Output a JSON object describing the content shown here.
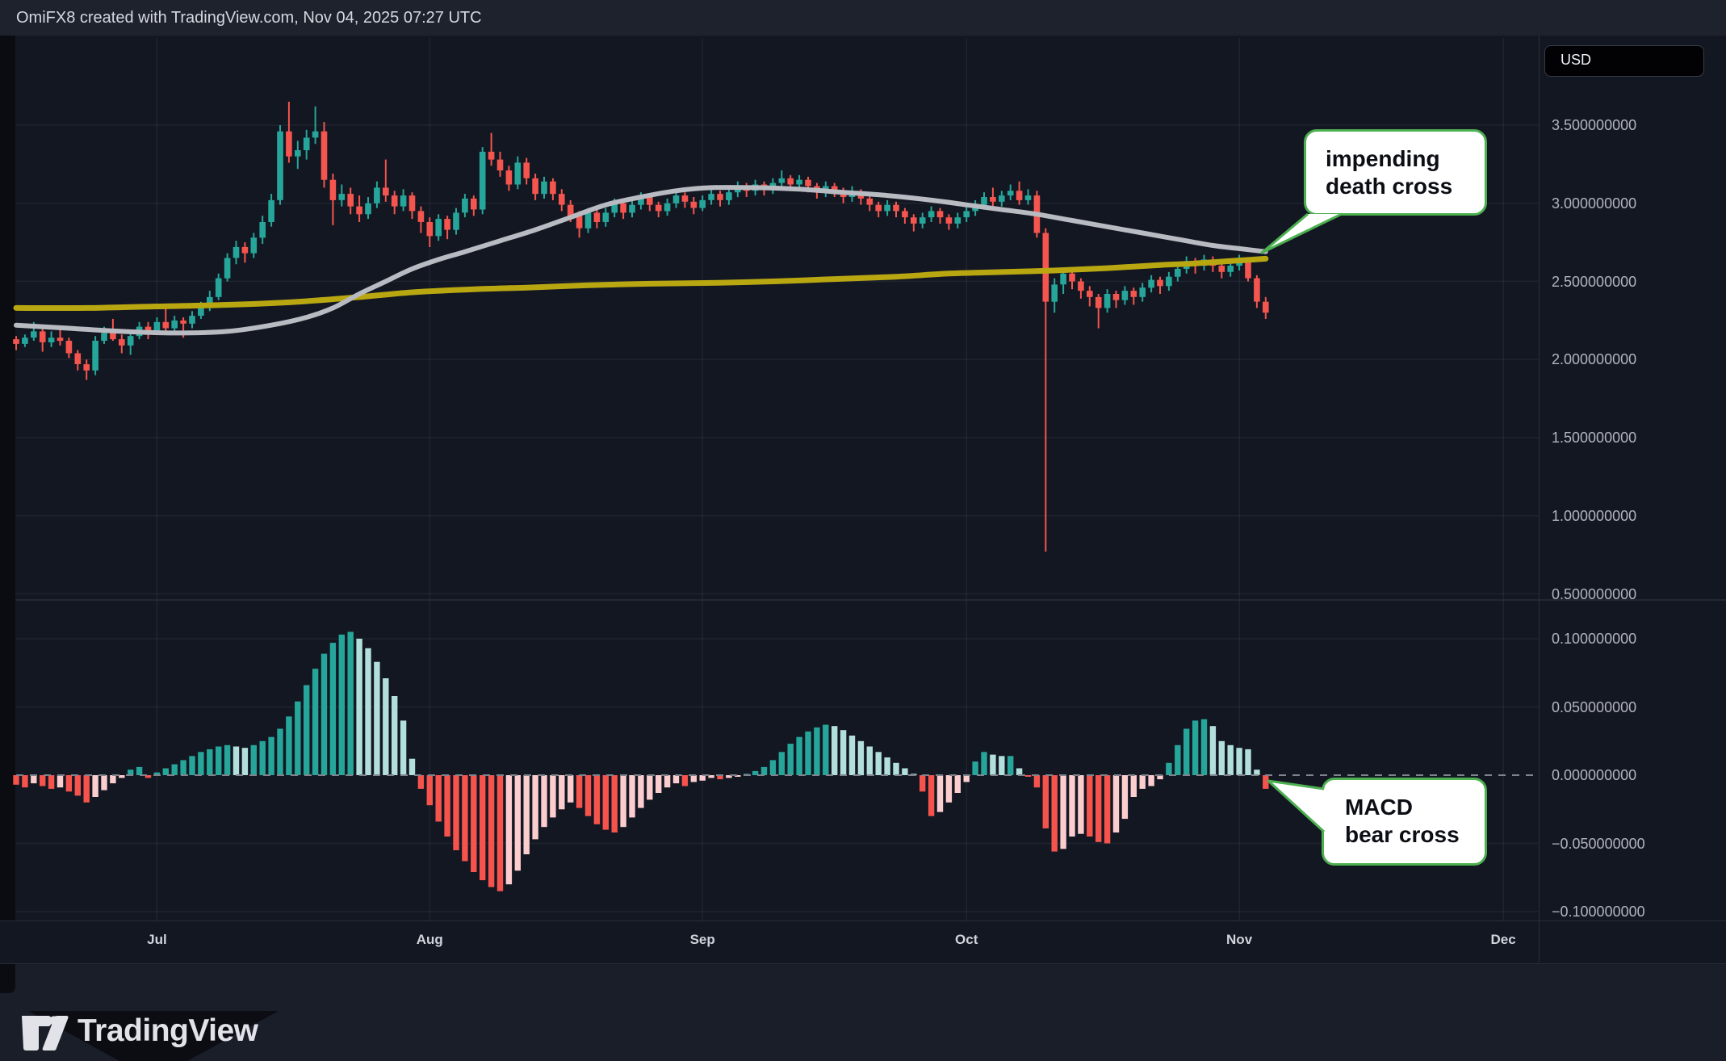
{
  "header": {
    "title": "OmiFX8 created with TradingView.com, Nov 04, 2025 07:27 UTC"
  },
  "price_scale": {
    "currency_badge": "USD",
    "ticks": [
      {
        "label": "3.500000000",
        "value": 3.5
      },
      {
        "label": "3.000000000",
        "value": 3.0
      },
      {
        "label": "2.500000000",
        "value": 2.5
      },
      {
        "label": "2.000000000",
        "value": 2.0
      },
      {
        "label": "1.500000000",
        "value": 1.5
      },
      {
        "label": "1.000000000",
        "value": 1.0
      },
      {
        "label": "0.500000000",
        "value": 0.5
      }
    ]
  },
  "macd_scale": {
    "ticks": [
      {
        "label": "0.100000000",
        "value": 0.1
      },
      {
        "label": "0.050000000",
        "value": 0.05
      },
      {
        "label": "0.000000000",
        "value": 0.0
      },
      {
        "label": "−0.050000000",
        "value": -0.05
      },
      {
        "label": "−0.100000000",
        "value": -0.1
      }
    ]
  },
  "time_axis": {
    "months": [
      {
        "label": "Jul",
        "index": 16
      },
      {
        "label": "Aug",
        "index": 47
      },
      {
        "label": "Sep",
        "index": 78
      },
      {
        "label": "Oct",
        "index": 108
      },
      {
        "label": "Nov",
        "index": 139
      },
      {
        "label": "Dec",
        "index": 169
      }
    ]
  },
  "annotations": {
    "death_cross": {
      "lines": [
        "impending",
        "death cross"
      ]
    },
    "macd_cross": {
      "lines": [
        "MACD",
        "bear cross"
      ]
    }
  },
  "branding": {
    "wordmark": "TradingView"
  },
  "colors": {
    "background": "#131722",
    "candle_up": "#26a69a",
    "candle_down": "#f4554e",
    "macd_up_grow": "#26a69a",
    "macd_up_fall": "#b2dfdb",
    "macd_down_fall": "#f6534d",
    "macd_down_grow": "#fbcdce",
    "ma_fast": "#b9bbc2",
    "ma_slow": "#b9a711",
    "callout_border": "#4caf50",
    "axis_text": "#b2b5be"
  },
  "chart_data": {
    "type": "candlestick",
    "interval": "1D",
    "currency": "USD",
    "start_date": "2025-06-15",
    "end_date": "2025-11-04",
    "title": "",
    "price_ylim": [
      0.47,
      4.06
    ],
    "macd_ylim": [
      -0.107,
      0.127
    ],
    "grid": true,
    "candles": [
      [
        2.13,
        2.15,
        2.06,
        2.1
      ],
      [
        2.1,
        2.16,
        2.08,
        2.14
      ],
      [
        2.14,
        2.24,
        2.12,
        2.18
      ],
      [
        2.18,
        2.2,
        2.05,
        2.11
      ],
      [
        2.11,
        2.18,
        2.08,
        2.14
      ],
      [
        2.14,
        2.19,
        2.09,
        2.12
      ],
      [
        2.12,
        2.14,
        2.01,
        2.04
      ],
      [
        2.04,
        2.06,
        1.93,
        1.97
      ],
      [
        1.97,
        2.0,
        1.87,
        1.93
      ],
      [
        1.93,
        2.15,
        1.9,
        2.12
      ],
      [
        2.12,
        2.21,
        2.1,
        2.17
      ],
      [
        2.17,
        2.26,
        2.12,
        2.13
      ],
      [
        2.13,
        2.16,
        2.04,
        2.09
      ],
      [
        2.09,
        2.18,
        2.03,
        2.15
      ],
      [
        2.15,
        2.24,
        2.13,
        2.21
      ],
      [
        2.21,
        2.24,
        2.13,
        2.18
      ],
      [
        2.18,
        2.27,
        2.16,
        2.24
      ],
      [
        2.24,
        2.33,
        2.18,
        2.2
      ],
      [
        2.2,
        2.28,
        2.17,
        2.25
      ],
      [
        2.25,
        2.27,
        2.14,
        2.23
      ],
      [
        2.23,
        2.31,
        2.2,
        2.28
      ],
      [
        2.28,
        2.37,
        2.26,
        2.34
      ],
      [
        2.34,
        2.44,
        2.31,
        2.4
      ],
      [
        2.4,
        2.55,
        2.38,
        2.52
      ],
      [
        2.52,
        2.68,
        2.5,
        2.65
      ],
      [
        2.65,
        2.76,
        2.61,
        2.72
      ],
      [
        2.72,
        2.75,
        2.62,
        2.68
      ],
      [
        2.68,
        2.81,
        2.65,
        2.78
      ],
      [
        2.78,
        2.92,
        2.74,
        2.88
      ],
      [
        2.88,
        3.06,
        2.85,
        3.02
      ],
      [
        3.02,
        3.5,
        2.99,
        3.46
      ],
      [
        3.46,
        3.65,
        3.26,
        3.3
      ],
      [
        3.3,
        3.4,
        3.22,
        3.34
      ],
      [
        3.34,
        3.47,
        3.28,
        3.42
      ],
      [
        3.42,
        3.62,
        3.38,
        3.46
      ],
      [
        3.46,
        3.52,
        3.1,
        3.15
      ],
      [
        3.15,
        3.19,
        2.86,
        3.02
      ],
      [
        3.02,
        3.12,
        2.98,
        3.06
      ],
      [
        3.06,
        3.1,
        2.93,
        2.98
      ],
      [
        2.98,
        3.05,
        2.88,
        2.93
      ],
      [
        2.93,
        3.04,
        2.9,
        3.0
      ],
      [
        3.0,
        3.14,
        2.97,
        3.1
      ],
      [
        3.1,
        3.28,
        3.01,
        3.05
      ],
      [
        3.05,
        3.08,
        2.93,
        2.98
      ],
      [
        2.98,
        3.09,
        2.95,
        3.05
      ],
      [
        3.05,
        3.07,
        2.9,
        2.95
      ],
      [
        2.95,
        2.98,
        2.81,
        2.88
      ],
      [
        2.88,
        2.91,
        2.72,
        2.79
      ],
      [
        2.79,
        2.93,
        2.76,
        2.9
      ],
      [
        2.9,
        2.92,
        2.77,
        2.83
      ],
      [
        2.83,
        2.97,
        2.8,
        2.94
      ],
      [
        2.94,
        3.06,
        2.91,
        3.03
      ],
      [
        3.03,
        3.05,
        2.92,
        2.96
      ],
      [
        2.96,
        3.36,
        2.93,
        3.33
      ],
      [
        3.33,
        3.45,
        3.24,
        3.28
      ],
      [
        3.28,
        3.33,
        3.17,
        3.21
      ],
      [
        3.21,
        3.24,
        3.08,
        3.12
      ],
      [
        3.12,
        3.3,
        3.09,
        3.26
      ],
      [
        3.26,
        3.29,
        3.12,
        3.16
      ],
      [
        3.16,
        3.19,
        3.02,
        3.06
      ],
      [
        3.06,
        3.17,
        3.03,
        3.14
      ],
      [
        3.14,
        3.16,
        3.02,
        3.06
      ],
      [
        3.06,
        3.09,
        2.95,
        2.99
      ],
      [
        2.99,
        3.02,
        2.88,
        2.92
      ],
      [
        2.92,
        2.95,
        2.78,
        2.84
      ],
      [
        2.84,
        2.97,
        2.81,
        2.94
      ],
      [
        2.94,
        2.96,
        2.84,
        2.88
      ],
      [
        2.88,
        2.97,
        2.85,
        2.94
      ],
      [
        2.94,
        3.03,
        2.91,
        3.0
      ],
      [
        3.0,
        3.02,
        2.9,
        2.94
      ],
      [
        2.94,
        3.02,
        2.91,
        2.99
      ],
      [
        2.99,
        3.07,
        2.96,
        3.04
      ],
      [
        3.04,
        3.06,
        2.95,
        2.99
      ],
      [
        2.99,
        3.01,
        2.91,
        2.95
      ],
      [
        2.95,
        3.03,
        2.92,
        3.0
      ],
      [
        3.0,
        3.08,
        2.97,
        3.05
      ],
      [
        3.05,
        3.07,
        2.97,
        3.01
      ],
      [
        3.01,
        3.04,
        2.93,
        2.97
      ],
      [
        2.97,
        3.05,
        2.95,
        3.02
      ],
      [
        3.02,
        3.09,
        2.99,
        3.06
      ],
      [
        3.06,
        3.08,
        2.98,
        3.02
      ],
      [
        3.02,
        3.1,
        2.99,
        3.07
      ],
      [
        3.07,
        3.14,
        3.04,
        3.11
      ],
      [
        3.11,
        3.13,
        3.04,
        3.08
      ],
      [
        3.08,
        3.15,
        3.05,
        3.12
      ],
      [
        3.12,
        3.14,
        3.05,
        3.09
      ],
      [
        3.09,
        3.16,
        3.06,
        3.13
      ],
      [
        3.13,
        3.21,
        3.1,
        3.16
      ],
      [
        3.16,
        3.18,
        3.08,
        3.12
      ],
      [
        3.12,
        3.18,
        3.09,
        3.15
      ],
      [
        3.15,
        3.17,
        3.07,
        3.11
      ],
      [
        3.11,
        3.13,
        3.03,
        3.07
      ],
      [
        3.07,
        3.14,
        3.04,
        3.11
      ],
      [
        3.11,
        3.13,
        3.04,
        3.08
      ],
      [
        3.08,
        3.1,
        3.0,
        3.04
      ],
      [
        3.04,
        3.11,
        3.01,
        3.07
      ],
      [
        3.07,
        3.09,
        2.99,
        3.03
      ],
      [
        3.03,
        3.05,
        2.95,
        2.99
      ],
      [
        2.99,
        3.01,
        2.91,
        2.95
      ],
      [
        2.95,
        3.02,
        2.92,
        2.99
      ],
      [
        2.99,
        3.01,
        2.91,
        2.95
      ],
      [
        2.95,
        2.97,
        2.87,
        2.91
      ],
      [
        2.91,
        2.93,
        2.82,
        2.87
      ],
      [
        2.87,
        2.94,
        2.84,
        2.91
      ],
      [
        2.91,
        2.98,
        2.88,
        2.95
      ],
      [
        2.95,
        2.97,
        2.87,
        2.91
      ],
      [
        2.91,
        2.93,
        2.83,
        2.87
      ],
      [
        2.87,
        2.94,
        2.84,
        2.91
      ],
      [
        2.91,
        2.98,
        2.88,
        2.95
      ],
      [
        2.95,
        3.02,
        2.92,
        2.99
      ],
      [
        2.99,
        3.07,
        2.96,
        3.04
      ],
      [
        3.04,
        3.1,
        2.98,
        3.01
      ],
      [
        3.01,
        3.08,
        2.98,
        3.05
      ],
      [
        3.05,
        3.12,
        3.02,
        3.08
      ],
      [
        3.08,
        3.14,
        2.99,
        3.02
      ],
      [
        3.02,
        3.09,
        2.99,
        3.05
      ],
      [
        3.05,
        3.08,
        2.78,
        2.81
      ],
      [
        2.81,
        2.84,
        0.77,
        2.37
      ],
      [
        2.37,
        2.52,
        2.3,
        2.48
      ],
      [
        2.48,
        2.58,
        2.42,
        2.55
      ],
      [
        2.55,
        2.57,
        2.45,
        2.5
      ],
      [
        2.5,
        2.52,
        2.39,
        2.44
      ],
      [
        2.44,
        2.47,
        2.34,
        2.4
      ],
      [
        2.4,
        2.42,
        2.2,
        2.33
      ],
      [
        2.33,
        2.45,
        2.3,
        2.42
      ],
      [
        2.42,
        2.44,
        2.33,
        2.38
      ],
      [
        2.38,
        2.47,
        2.35,
        2.44
      ],
      [
        2.44,
        2.46,
        2.35,
        2.4
      ],
      [
        2.4,
        2.49,
        2.37,
        2.46
      ],
      [
        2.46,
        2.54,
        2.43,
        2.51
      ],
      [
        2.51,
        2.53,
        2.42,
        2.47
      ],
      [
        2.47,
        2.56,
        2.44,
        2.53
      ],
      [
        2.53,
        2.61,
        2.5,
        2.58
      ],
      [
        2.58,
        2.66,
        2.55,
        2.63
      ],
      [
        2.63,
        2.65,
        2.55,
        2.6
      ],
      [
        2.6,
        2.67,
        2.57,
        2.64
      ],
      [
        2.64,
        2.66,
        2.56,
        2.6
      ],
      [
        2.6,
        2.62,
        2.52,
        2.56
      ],
      [
        2.56,
        2.63,
        2.53,
        2.6
      ],
      [
        2.6,
        2.67,
        2.57,
        2.63
      ],
      [
        2.63,
        2.64,
        2.5,
        2.52
      ],
      [
        2.52,
        2.54,
        2.33,
        2.37
      ],
      [
        2.37,
        2.4,
        2.26,
        2.3
      ]
    ],
    "macd_histogram": [
      -0.007,
      -0.009,
      -0.006,
      -0.008,
      -0.01,
      -0.009,
      -0.012,
      -0.015,
      -0.02,
      -0.016,
      -0.011,
      -0.006,
      -0.002,
      0.004,
      0.006,
      -0.002,
      0.002,
      0.005,
      0.008,
      0.011,
      0.014,
      0.017,
      0.019,
      0.021,
      0.022,
      0.021,
      0.02,
      0.022,
      0.025,
      0.028,
      0.034,
      0.043,
      0.054,
      0.066,
      0.078,
      0.089,
      0.097,
      0.103,
      0.105,
      0.1,
      0.093,
      0.083,
      0.071,
      0.058,
      0.04,
      0.012,
      -0.01,
      -0.022,
      -0.034,
      -0.045,
      -0.055,
      -0.063,
      -0.071,
      -0.077,
      -0.082,
      -0.085,
      -0.08,
      -0.07,
      -0.058,
      -0.047,
      -0.038,
      -0.031,
      -0.025,
      -0.02,
      -0.024,
      -0.03,
      -0.036,
      -0.04,
      -0.042,
      -0.038,
      -0.031,
      -0.024,
      -0.018,
      -0.013,
      -0.009,
      -0.006,
      -0.008,
      -0.005,
      -0.004,
      -0.002,
      -0.003,
      -0.002,
      -0.001,
      0.001,
      0.003,
      0.006,
      0.011,
      0.017,
      0.023,
      0.028,
      0.032,
      0.035,
      0.037,
      0.036,
      0.033,
      0.029,
      0.025,
      0.021,
      0.017,
      0.013,
      0.009,
      0.005,
      0.001,
      -0.012,
      -0.03,
      -0.027,
      -0.02,
      -0.013,
      -0.005,
      0.01,
      0.017,
      0.015,
      0.014,
      0.014,
      0.005,
      -0.001,
      -0.009,
      -0.039,
      -0.056,
      -0.054,
      -0.045,
      -0.043,
      -0.045,
      -0.049,
      -0.05,
      -0.042,
      -0.032,
      -0.016,
      -0.01,
      -0.008,
      -0.003,
      0.009,
      0.022,
      0.034,
      0.04,
      0.041,
      0.036,
      0.025,
      0.022,
      0.02,
      0.019,
      0.004,
      -0.01
    ],
    "ma_fast_gray": {
      "name": "fast moving average",
      "points": [
        [
          0,
          2.22
        ],
        [
          6,
          2.2
        ],
        [
          12,
          2.18
        ],
        [
          18,
          2.17
        ],
        [
          24,
          2.18
        ],
        [
          29,
          2.22
        ],
        [
          33,
          2.27
        ],
        [
          36,
          2.33
        ],
        [
          39,
          2.42
        ],
        [
          42,
          2.5
        ],
        [
          45,
          2.58
        ],
        [
          48,
          2.64
        ],
        [
          51,
          2.69
        ],
        [
          55,
          2.76
        ],
        [
          59,
          2.83
        ],
        [
          63,
          2.91
        ],
        [
          67,
          2.99
        ],
        [
          71,
          3.04
        ],
        [
          75,
          3.08
        ],
        [
          79,
          3.1
        ],
        [
          84,
          3.1
        ],
        [
          89,
          3.09
        ],
        [
          94,
          3.07
        ],
        [
          99,
          3.05
        ],
        [
          104,
          3.02
        ],
        [
          108,
          2.99
        ],
        [
          112,
          2.96
        ],
        [
          116,
          2.93
        ],
        [
          120,
          2.89
        ],
        [
          124,
          2.85
        ],
        [
          128,
          2.81
        ],
        [
          132,
          2.77
        ],
        [
          136,
          2.73
        ],
        [
          139,
          2.71
        ],
        [
          142,
          2.69
        ]
      ]
    },
    "ma_slow_yellow": {
      "name": "slow moving average",
      "points": [
        [
          0,
          2.33
        ],
        [
          8,
          2.33
        ],
        [
          16,
          2.34
        ],
        [
          24,
          2.35
        ],
        [
          32,
          2.37
        ],
        [
          39,
          2.4
        ],
        [
          45,
          2.43
        ],
        [
          52,
          2.45
        ],
        [
          58,
          2.46
        ],
        [
          65,
          2.475
        ],
        [
          72,
          2.485
        ],
        [
          79,
          2.49
        ],
        [
          86,
          2.5
        ],
        [
          93,
          2.515
        ],
        [
          100,
          2.53
        ],
        [
          106,
          2.55
        ],
        [
          112,
          2.56
        ],
        [
          118,
          2.57
        ],
        [
          124,
          2.585
        ],
        [
          130,
          2.605
        ],
        [
          134,
          2.615
        ],
        [
          138,
          2.63
        ],
        [
          142,
          2.645
        ]
      ]
    }
  }
}
